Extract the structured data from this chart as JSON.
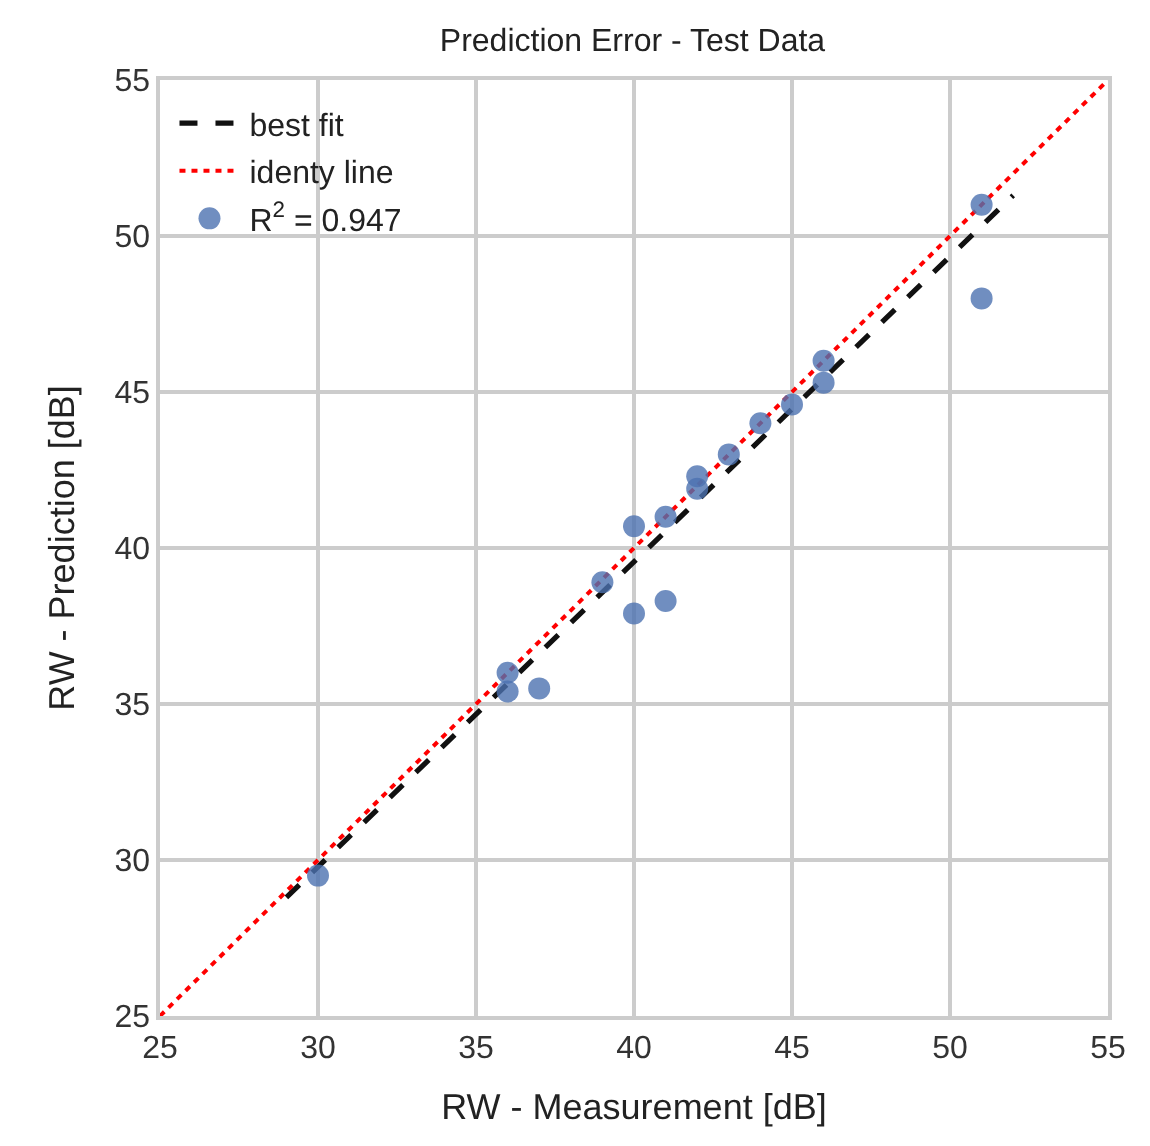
{
  "chart_data": {
    "type": "scatter",
    "title": "Prediction Error - Test Data",
    "xlabel": "RW - Measurement [dB]",
    "ylabel": "RW - Prediction [dB]",
    "xlim": [
      25,
      55
    ],
    "ylim": [
      25,
      55
    ],
    "xticks": [
      25,
      30,
      35,
      40,
      45,
      50,
      55
    ],
    "yticks": [
      25,
      30,
      35,
      40,
      45,
      50,
      55
    ],
    "grid": true,
    "legend": "top left",
    "series": [
      {
        "name": "best fit",
        "type": "line",
        "color": "#111111",
        "line_style": "dashed",
        "marker": "none",
        "x": [
          29,
          52
        ],
        "values": [
          28.8,
          51.3
        ]
      },
      {
        "name": "identy line",
        "type": "line",
        "color": "#ff0000",
        "line_style": "dotted",
        "marker": "none",
        "x": [
          25,
          55
        ],
        "values": [
          25,
          55
        ]
      },
      {
        "name": "R$^{2}$ = 0.947",
        "color": "#4c72b0",
        "marker": "circle",
        "x": [
          30,
          36,
          36,
          37,
          39,
          40,
          40,
          41,
          41,
          42,
          42,
          43,
          44,
          45,
          46,
          46,
          51,
          51
        ],
        "values": [
          29.5,
          36.0,
          35.4,
          35.5,
          38.9,
          37.9,
          40.7,
          38.3,
          41.0,
          41.9,
          42.3,
          43.0,
          44.0,
          44.6,
          45.3,
          46.0,
          51.0,
          48.0
        ]
      }
    ]
  }
}
